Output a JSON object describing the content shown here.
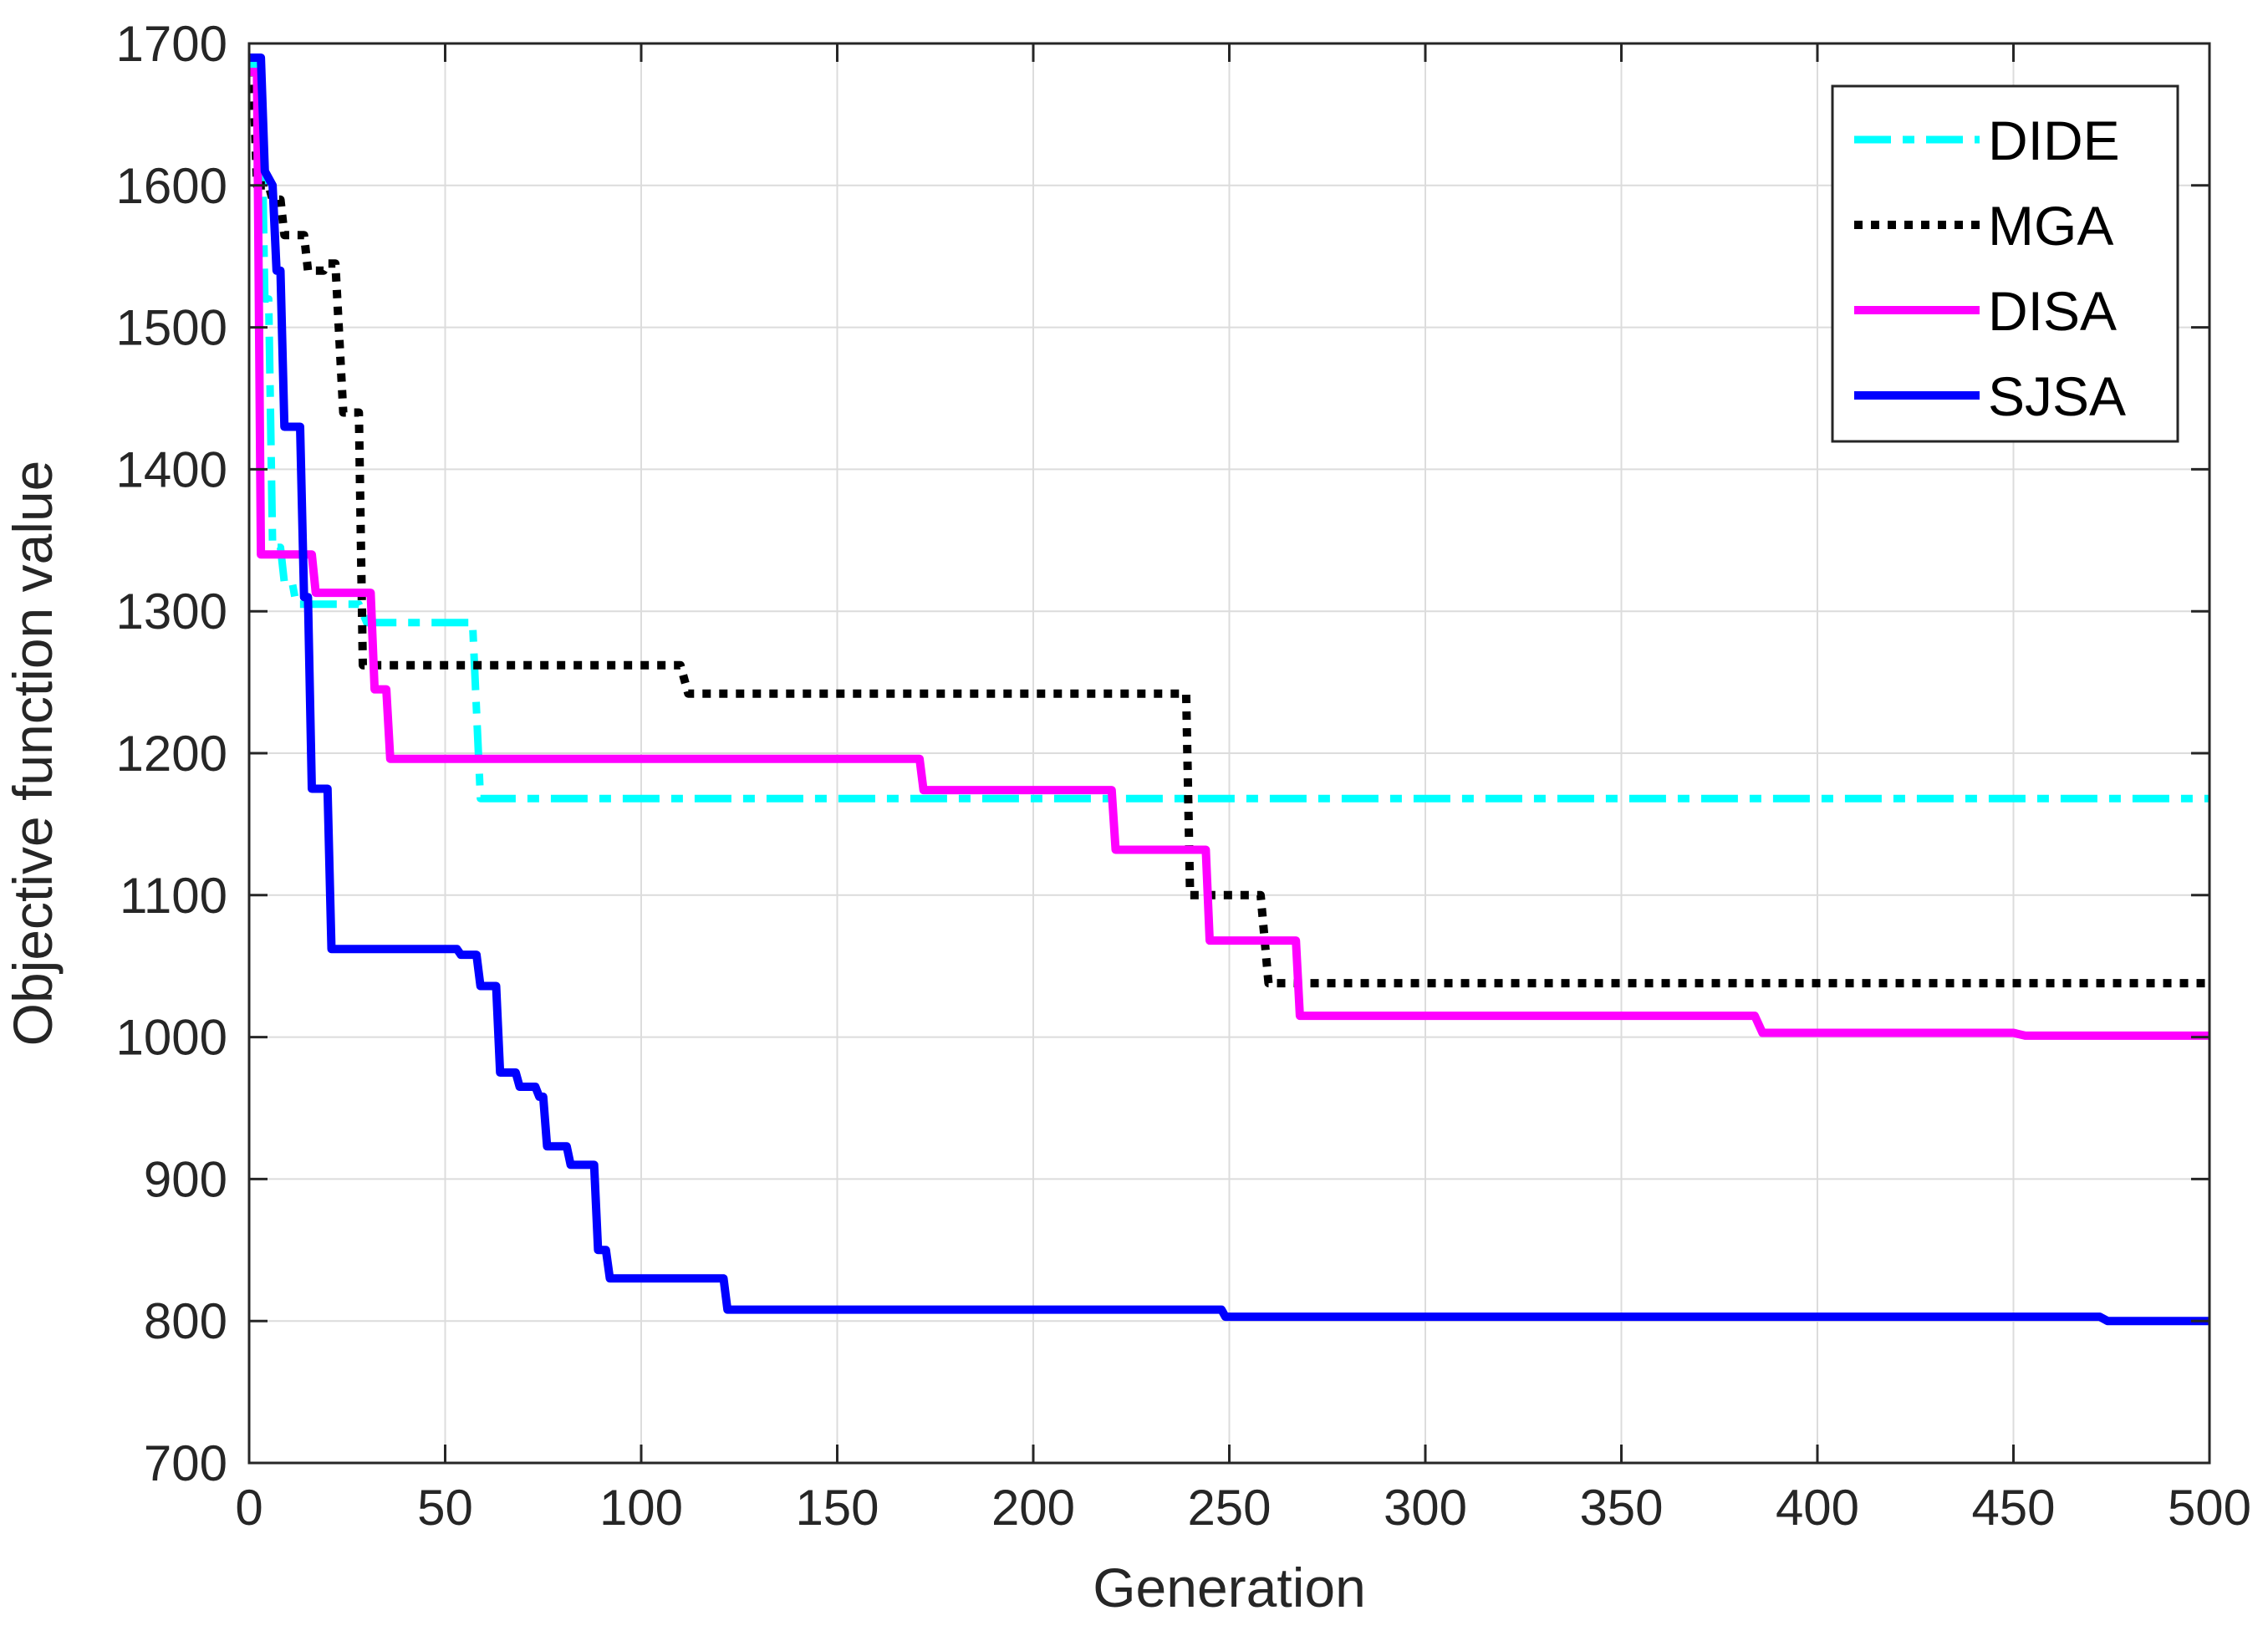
{
  "chart_data": {
    "type": "line",
    "title": "",
    "xlabel": "Generation",
    "ylabel": "Objective function value",
    "xlim": [
      0,
      500
    ],
    "ylim": [
      700,
      1700
    ],
    "xticks": [
      "0",
      "50",
      "100",
      "150",
      "200",
      "250",
      "300",
      "350",
      "400",
      "450",
      "500"
    ],
    "yticks": [
      "700",
      "800",
      "900",
      "1000",
      "1100",
      "1200",
      "1300",
      "1400",
      "1500",
      "1600",
      "1700"
    ],
    "grid": true,
    "legend_position": "top-right",
    "series": [
      {
        "name": "DIDE",
        "color": "#00ffff",
        "style": "dash-dot",
        "points": [
          [
            0,
            1685
          ],
          [
            3,
            1685
          ],
          [
            4,
            1520
          ],
          [
            5,
            1520
          ],
          [
            6,
            1345
          ],
          [
            8,
            1345
          ],
          [
            9,
            1320
          ],
          [
            11,
            1320
          ],
          [
            12,
            1305
          ],
          [
            28,
            1305
          ],
          [
            30,
            1292
          ],
          [
            57,
            1292
          ],
          [
            59,
            1168
          ],
          [
            500,
            1168
          ]
        ]
      },
      {
        "name": "MGA",
        "color": "#000000",
        "style": "dotted",
        "points": [
          [
            0,
            1680
          ],
          [
            1,
            1680
          ],
          [
            2,
            1600
          ],
          [
            5,
            1600
          ],
          [
            6,
            1590
          ],
          [
            8,
            1590
          ],
          [
            9,
            1565
          ],
          [
            14,
            1565
          ],
          [
            15,
            1540
          ],
          [
            19,
            1540
          ],
          [
            20,
            1545
          ],
          [
            22,
            1545
          ],
          [
            24,
            1440
          ],
          [
            28,
            1440
          ],
          [
            29,
            1262
          ],
          [
            110,
            1262
          ],
          [
            112,
            1242
          ],
          [
            239,
            1242
          ],
          [
            240,
            1100
          ],
          [
            258,
            1100
          ],
          [
            260,
            1038
          ],
          [
            500,
            1038
          ]
        ]
      },
      {
        "name": "DISA",
        "color": "#ff00ff",
        "style": "solid",
        "points": [
          [
            0,
            1680
          ],
          [
            2,
            1680
          ],
          [
            3,
            1340
          ],
          [
            16,
            1340
          ],
          [
            17,
            1313
          ],
          [
            31,
            1313
          ],
          [
            32,
            1245
          ],
          [
            35,
            1245
          ],
          [
            36,
            1196
          ],
          [
            171,
            1196
          ],
          [
            172,
            1174
          ],
          [
            220,
            1174
          ],
          [
            221,
            1132
          ],
          [
            244,
            1132
          ],
          [
            245,
            1068
          ],
          [
            267,
            1068
          ],
          [
            268,
            1015
          ],
          [
            384,
            1015
          ],
          [
            386,
            1003
          ],
          [
            450,
            1003
          ],
          [
            453,
            1001
          ],
          [
            500,
            1001
          ]
        ]
      },
      {
        "name": "SJSA",
        "color": "#0000ff",
        "style": "solid",
        "points": [
          [
            0,
            1690
          ],
          [
            3,
            1690
          ],
          [
            4,
            1610
          ],
          [
            6,
            1600
          ],
          [
            7,
            1540
          ],
          [
            8,
            1540
          ],
          [
            9,
            1430
          ],
          [
            13,
            1430
          ],
          [
            14,
            1310
          ],
          [
            15,
            1310
          ],
          [
            16,
            1175
          ],
          [
            20,
            1175
          ],
          [
            21,
            1062
          ],
          [
            53,
            1062
          ],
          [
            54,
            1058
          ],
          [
            58,
            1058
          ],
          [
            59,
            1036
          ],
          [
            63,
            1036
          ],
          [
            64,
            975
          ],
          [
            68,
            975
          ],
          [
            69,
            965
          ],
          [
            73,
            965
          ],
          [
            74,
            958
          ],
          [
            75,
            958
          ],
          [
            76,
            923
          ],
          [
            81,
            923
          ],
          [
            82,
            910
          ],
          [
            88,
            910
          ],
          [
            89,
            850
          ],
          [
            91,
            850
          ],
          [
            92,
            830
          ],
          [
            121,
            830
          ],
          [
            122,
            808
          ],
          [
            248,
            808
          ],
          [
            249,
            803
          ],
          [
            472,
            803
          ],
          [
            474,
            800
          ],
          [
            500,
            800
          ]
        ]
      }
    ]
  }
}
